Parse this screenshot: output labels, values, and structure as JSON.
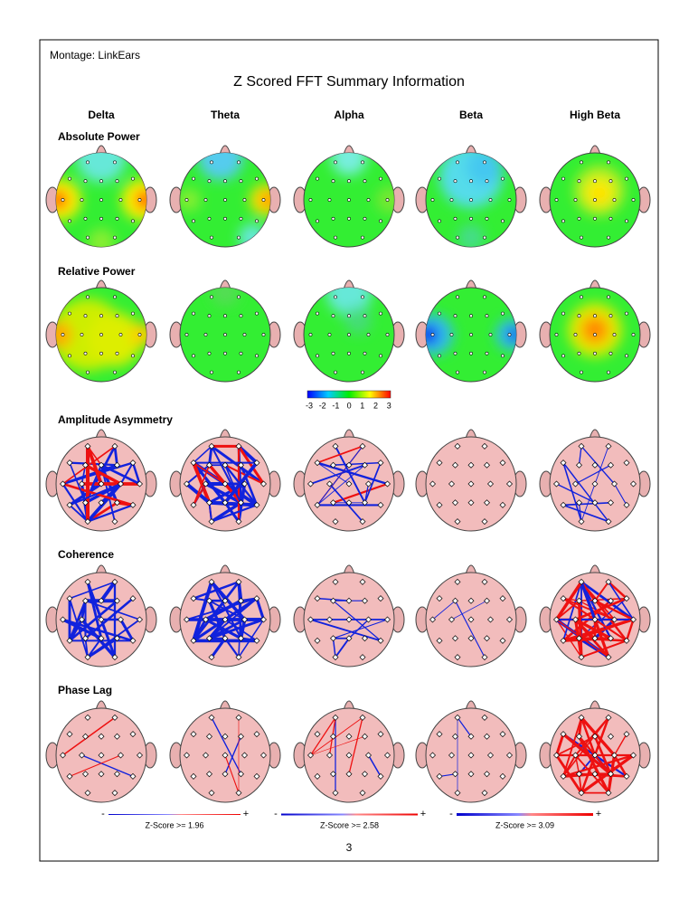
{
  "header": {
    "montage": "Montage:  LinkEars",
    "title": "Z Scored FFT Summary Information"
  },
  "bands": [
    "Delta",
    "Theta",
    "Alpha",
    "Beta",
    "High Beta"
  ],
  "rows": [
    "Absolute Power",
    "Relative Power",
    "Amplitude Asymmetry",
    "Coherence",
    "Phase Lag"
  ],
  "color_scale": {
    "labels": [
      -3,
      -2,
      -1,
      0,
      1,
      2,
      3
    ]
  },
  "legends": [
    {
      "minus": "-",
      "plus": "+",
      "label": "Z-Score >= 1.96"
    },
    {
      "minus": "-",
      "plus": "+",
      "label": "Z-Score >= 2.58"
    },
    {
      "minus": "-",
      "plus": "+",
      "label": "Z-Score >= 3.09"
    }
  ],
  "page_number": 3
}
